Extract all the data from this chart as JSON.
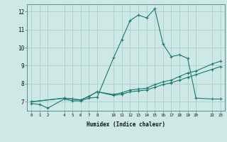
{
  "xlabel": "Humidex (Indice chaleur)",
  "background_color": "#cde8e5",
  "grid_color": "#aacfcc",
  "line_color": "#1a7a70",
  "series": [
    {
      "x": [
        0,
        1,
        2,
        4,
        5,
        6,
        7,
        8,
        10,
        11,
        12,
        13,
        14,
        15,
        16,
        17,
        18,
        19,
        20,
        22,
        23
      ],
      "y": [
        6.9,
        6.85,
        6.65,
        7.15,
        7.05,
        7.05,
        7.2,
        7.25,
        9.45,
        10.45,
        11.5,
        11.8,
        11.65,
        12.15,
        10.2,
        9.5,
        9.6,
        9.4,
        7.2,
        7.15,
        7.15
      ]
    },
    {
      "x": [
        0,
        4,
        5,
        6,
        7,
        8,
        10,
        11,
        12,
        13,
        14,
        15,
        16,
        17,
        18,
        19,
        20,
        22,
        23
      ],
      "y": [
        7.0,
        7.2,
        7.15,
        7.1,
        7.3,
        7.55,
        7.4,
        7.5,
        7.65,
        7.7,
        7.75,
        7.95,
        8.1,
        8.2,
        8.4,
        8.6,
        8.7,
        9.1,
        9.25
      ]
    },
    {
      "x": [
        0,
        4,
        5,
        6,
        7,
        8,
        10,
        11,
        12,
        13,
        14,
        15,
        16,
        17,
        18,
        19,
        20,
        22,
        23
      ],
      "y": [
        7.0,
        7.2,
        7.15,
        7.1,
        7.3,
        7.55,
        7.35,
        7.42,
        7.55,
        7.6,
        7.65,
        7.8,
        7.95,
        8.05,
        8.2,
        8.35,
        8.5,
        8.8,
        8.95
      ]
    }
  ],
  "xticks": [
    0,
    1,
    2,
    4,
    5,
    6,
    7,
    8,
    10,
    11,
    12,
    13,
    14,
    15,
    16,
    17,
    18,
    19,
    20,
    22,
    23
  ],
  "yticks": [
    7,
    8,
    9,
    10,
    11,
    12
  ],
  "xlim": [
    -0.5,
    23.5
  ],
  "ylim": [
    6.5,
    12.4
  ]
}
